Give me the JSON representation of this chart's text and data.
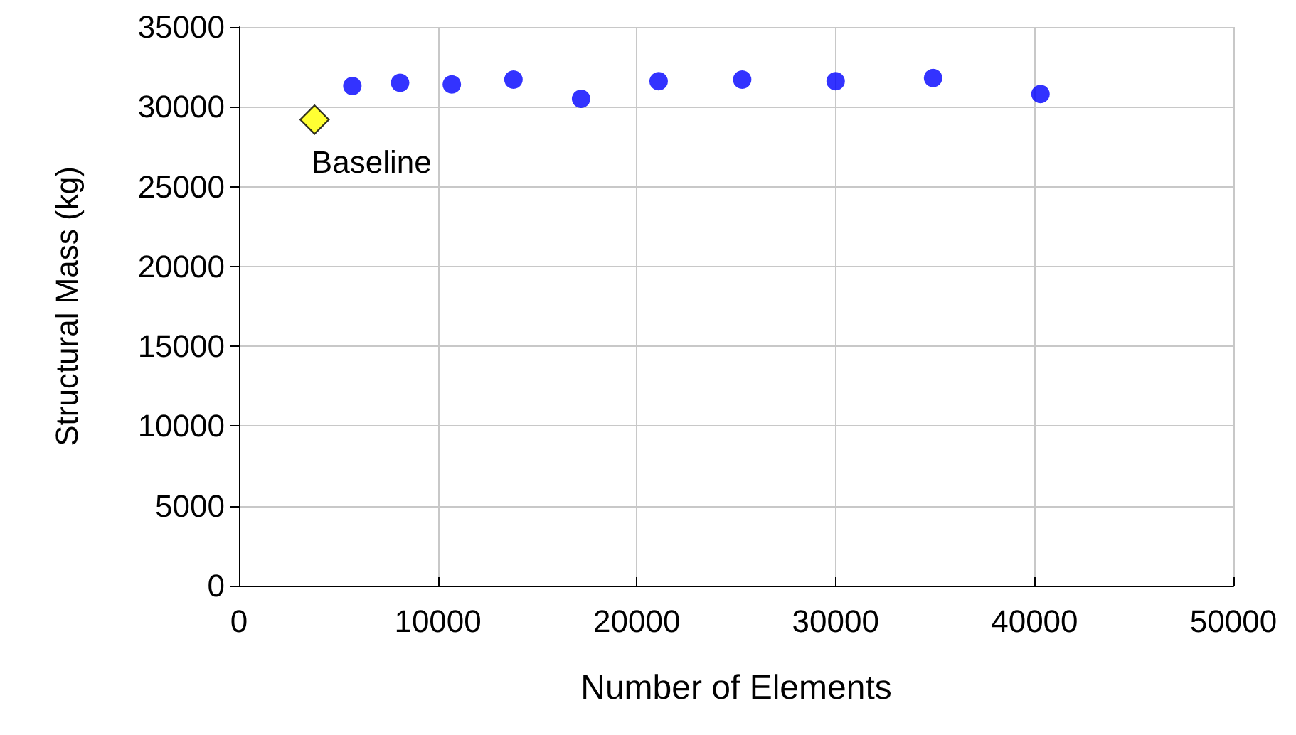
{
  "chart_data": {
    "type": "scatter",
    "xlabel": "Number of Elements",
    "ylabel": "Structural Mass (kg)",
    "xlim": [
      0,
      50000
    ],
    "xticks": [
      0,
      10000,
      20000,
      30000,
      40000,
      50000
    ],
    "ylim": [
      0,
      35000
    ],
    "yticks": [
      0,
      5000,
      10000,
      15000,
      20000,
      25000,
      30000,
      35000
    ],
    "grid": true,
    "series": [
      {
        "color": "#ffff00",
        "marker": "diamond",
        "x": [
          3800
        ],
        "values": [
          29200
        ]
      },
      {
        "color": "#0000ff",
        "marker": "circle",
        "x": [
          5700,
          8100,
          10700,
          13800,
          17200,
          21100,
          25300,
          30000,
          34900,
          40300
        ],
        "values": [
          31300,
          31500,
          31400,
          31700,
          30500,
          31600,
          31700,
          31600,
          31800,
          30800
        ]
      }
    ],
    "annotations": [
      {
        "text": "Baseline",
        "x": 3800,
        "y": 29200
      }
    ]
  }
}
